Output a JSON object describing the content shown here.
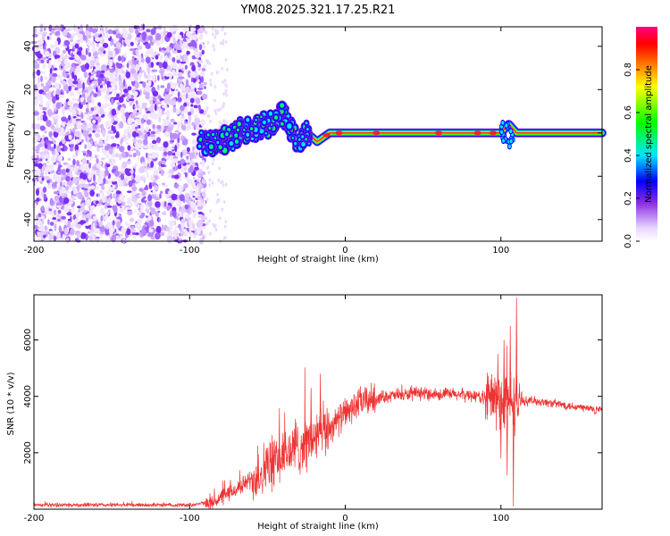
{
  "title": "YM08.2025.321.17.25.R21",
  "chart_data": [
    {
      "type": "heatmap",
      "name": "spectrogram",
      "xlabel": "Height of straight line (km)",
      "ylabel": "Frequency (Hz)",
      "xlim": [
        -200,
        165
      ],
      "ylim": [
        -50,
        49
      ],
      "x_ticks": [
        "-200",
        "-100",
        "0",
        "100"
      ],
      "y_ticks": [
        "-40",
        "-20",
        "0",
        "20",
        "40"
      ],
      "noise_region_end_km": -90,
      "signal_start_km": -95,
      "signal_track": [
        {
          "x": -95,
          "y": -5
        },
        {
          "x": -85,
          "y": -4
        },
        {
          "x": -75,
          "y": -3
        },
        {
          "x": -65,
          "y": 2
        },
        {
          "x": -55,
          "y": 3
        },
        {
          "x": -45,
          "y": 5
        },
        {
          "x": -40,
          "y": 10
        },
        {
          "x": -35,
          "y": 2
        },
        {
          "x": -30,
          "y": -3
        },
        {
          "x": -25,
          "y": 0
        },
        {
          "x": -18,
          "y": -4
        },
        {
          "x": -10,
          "y": 0
        },
        {
          "x": 0,
          "y": 0
        },
        {
          "x": 50,
          "y": 0
        },
        {
          "x": 100,
          "y": 0
        },
        {
          "x": 105,
          "y": 4
        },
        {
          "x": 110,
          "y": 0
        },
        {
          "x": 165,
          "y": 0
        }
      ],
      "colorbar": {
        "label": "Normalized spectral amplitude",
        "ticks": [
          "0.0",
          "0.2",
          "0.4",
          "0.6",
          "0.8"
        ],
        "range": [
          0,
          1
        ],
        "colors": [
          "#ffffff",
          "#8a2be2",
          "#0000ff",
          "#00ffff",
          "#00ff00",
          "#ffff00",
          "#ff0000",
          "#ff00aa"
        ]
      }
    },
    {
      "type": "line",
      "name": "snr",
      "xlabel": "Height of straight line (km)",
      "ylabel": "SNR (10 * v/v)",
      "xlim": [
        -200,
        165
      ],
      "ylim": [
        0,
        7600
      ],
      "x_ticks": [
        "-200",
        "-100",
        "0",
        "100"
      ],
      "y_ticks": [
        "2000",
        "4000",
        "6000"
      ],
      "color": "#ee3333",
      "trend": [
        {
          "x": -200,
          "y": 150
        },
        {
          "x": -100,
          "y": 150
        },
        {
          "x": -85,
          "y": 250
        },
        {
          "x": -70,
          "y": 700
        },
        {
          "x": -55,
          "y": 1300
        },
        {
          "x": -40,
          "y": 1900
        },
        {
          "x": -30,
          "y": 2200
        },
        {
          "x": -20,
          "y": 2500
        },
        {
          "x": -10,
          "y": 2900
        },
        {
          "x": 0,
          "y": 3400
        },
        {
          "x": 10,
          "y": 3800
        },
        {
          "x": 25,
          "y": 4000
        },
        {
          "x": 50,
          "y": 4100
        },
        {
          "x": 80,
          "y": 4050
        },
        {
          "x": 95,
          "y": 3900
        },
        {
          "x": 105,
          "y": 3800
        },
        {
          "x": 120,
          "y": 3850
        },
        {
          "x": 140,
          "y": 3700
        },
        {
          "x": 165,
          "y": 3500
        }
      ],
      "spikes": [
        {
          "x": -22,
          "y": 4300
        },
        {
          "x": -16,
          "y": 4800
        },
        {
          "x": -32,
          "y": 3200
        },
        {
          "x": -40,
          "y": 2700
        },
        {
          "x": 98,
          "y": 5500
        },
        {
          "x": 102,
          "y": 6000
        },
        {
          "x": 106,
          "y": 6500
        },
        {
          "x": 110,
          "y": 7500
        },
        {
          "x": 108,
          "y": 100
        },
        {
          "x": 104,
          "y": 1200
        },
        {
          "x": 100,
          "y": 1800
        }
      ]
    }
  ]
}
